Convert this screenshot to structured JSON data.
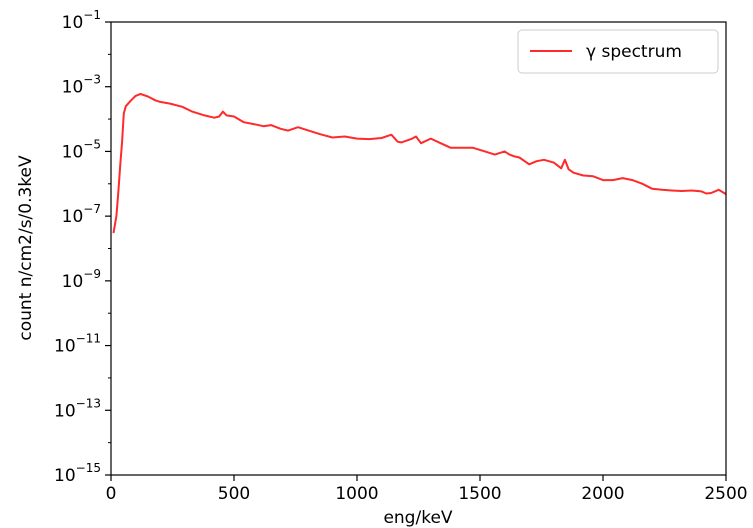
{
  "chart_data": {
    "type": "line",
    "xlabel": "eng/keV",
    "ylabel": "count n/cm2/s/0.3keV",
    "xlim": [
      0,
      2500
    ],
    "ylim": [
      1e-15,
      0.1
    ],
    "yscale": "log",
    "grid": false,
    "legend_position": "top-right",
    "x_ticks": [
      {
        "value": 0,
        "label": "0"
      },
      {
        "value": 500,
        "label": "500"
      },
      {
        "value": 1000,
        "label": "1000"
      },
      {
        "value": 1500,
        "label": "1500"
      },
      {
        "value": 2000,
        "label": "2000"
      },
      {
        "value": 2500,
        "label": "2500"
      }
    ],
    "y_ticks": [
      {
        "value": -15,
        "base": "10",
        "exp": "−15"
      },
      {
        "value": -13,
        "base": "10",
        "exp": "−13"
      },
      {
        "value": -11,
        "base": "10",
        "exp": "−11"
      },
      {
        "value": -9,
        "base": "10",
        "exp": "−9"
      },
      {
        "value": -7,
        "base": "10",
        "exp": "−7"
      },
      {
        "value": -5,
        "base": "10",
        "exp": "−5"
      },
      {
        "value": -3,
        "base": "10",
        "exp": "−3"
      },
      {
        "value": -1,
        "base": "10",
        "exp": "−1"
      }
    ],
    "series": [
      {
        "name": "γ spectrum",
        "color": "#ff2a2a",
        "x": [
          10,
          22,
          30,
          38,
          45,
          52,
          60,
          80,
          100,
          120,
          150,
          180,
          200,
          240,
          290,
          330,
          380,
          420,
          440,
          455,
          470,
          500,
          540,
          580,
          620,
          650,
          690,
          720,
          760,
          800,
          850,
          900,
          950,
          1000,
          1050,
          1100,
          1140,
          1165,
          1180,
          1220,
          1240,
          1260,
          1300,
          1340,
          1380,
          1420,
          1470,
          1520,
          1560,
          1600,
          1620,
          1640,
          1660,
          1700,
          1730,
          1760,
          1800,
          1830,
          1845,
          1860,
          1880,
          1920,
          1960,
          2000,
          2040,
          2080,
          2120,
          2160,
          2200,
          2240,
          2280,
          2320,
          2360,
          2400,
          2420,
          2440,
          2470,
          2500
        ],
        "y": [
          3e-08,
          1e-07,
          6e-07,
          4e-06,
          2e-05,
          0.00015,
          0.00025,
          0.00037,
          0.00052,
          0.0006,
          0.0005,
          0.00038,
          0.00034,
          0.0003,
          0.00024,
          0.00017,
          0.00013,
          0.00011,
          0.00012,
          0.00017,
          0.00013,
          0.00012,
          8e-05,
          7e-05,
          6e-05,
          6.5e-05,
          5e-05,
          4.4e-05,
          5.6e-05,
          4.5e-05,
          3.4e-05,
          2.7e-05,
          2.9e-05,
          2.5e-05,
          2.4e-05,
          2.6e-05,
          3.3e-05,
          2e-05,
          1.9e-05,
          2.4e-05,
          2.9e-05,
          1.8e-05,
          2.5e-05,
          1.8e-05,
          1.3e-05,
          1.3e-05,
          1.3e-05,
          1e-05,
          8e-06,
          1e-05,
          8e-06,
          7e-06,
          6.5e-06,
          4e-06,
          5e-06,
          5.5e-06,
          4.5e-06,
          3e-06,
          5.5e-06,
          2.8e-06,
          2.2e-06,
          1.8e-06,
          1.7e-06,
          1.3e-06,
          1.3e-06,
          1.5e-06,
          1.3e-06,
          1e-06,
          7e-07,
          6.5e-07,
          6.2e-07,
          6e-07,
          6.2e-07,
          5.8e-07,
          5e-07,
          5.2e-07,
          6.5e-07,
          4.8e-07
        ]
      }
    ]
  }
}
